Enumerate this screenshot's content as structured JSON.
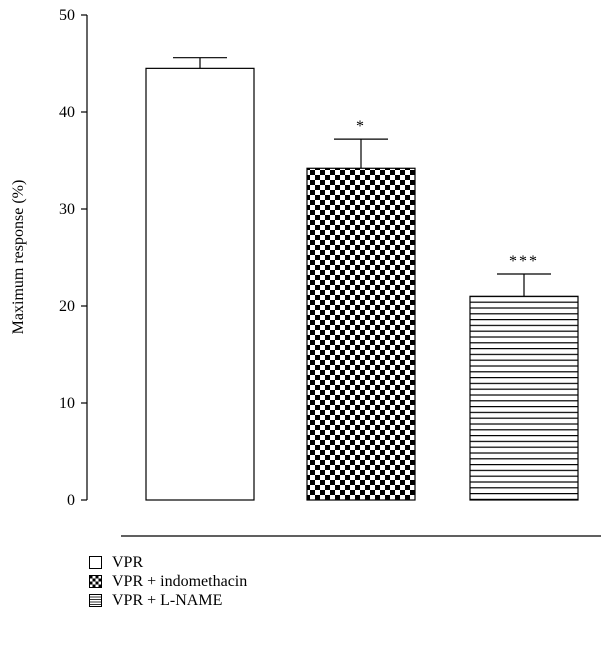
{
  "chart_data": {
    "type": "bar",
    "categories": [
      "VPR",
      "VPR + indomethacin",
      "VPR + L-NAME"
    ],
    "values": [
      44.5,
      34.2,
      21.0
    ],
    "errors": [
      1.1,
      3.0,
      2.3
    ],
    "significance": [
      "",
      "*",
      "***"
    ],
    "patterns": [
      "none",
      "checker",
      "hlines"
    ],
    "ylabel": "Maximum response (%)",
    "xlabel": "",
    "ylim": [
      0,
      50
    ],
    "yticks": [
      0,
      10,
      20,
      30,
      40,
      50
    ],
    "grid": false,
    "legend_position": "bottom-left"
  },
  "legend": {
    "items": [
      {
        "label": "VPR",
        "pattern": "none"
      },
      {
        "label": "VPR + indomethacin",
        "pattern": "checker"
      },
      {
        "label": "VPR + L-NAME",
        "pattern": "hlines"
      }
    ]
  }
}
